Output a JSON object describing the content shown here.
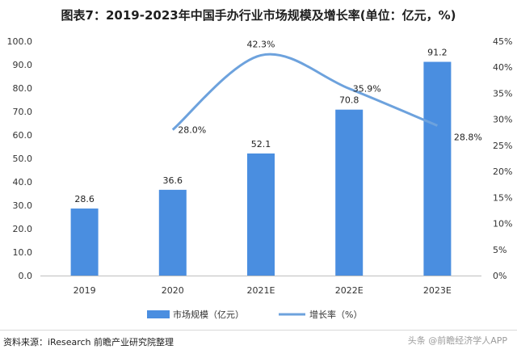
{
  "chart_data": {
    "type": "bar",
    "title": "图表7：2019-2023年中国手办行业市场规模及增长率(单位：亿元，%)",
    "categories": [
      "2019",
      "2020",
      "2021E",
      "2022E",
      "2023E"
    ],
    "series": [
      {
        "name": "市场规模（亿元）",
        "type": "bar",
        "axis": "left",
        "values": [
          28.6,
          36.6,
          52.1,
          70.8,
          91.2
        ],
        "labels": [
          "28.6",
          "36.6",
          "52.1",
          "70.8",
          "91.2"
        ]
      },
      {
        "name": "增长率（%）",
        "type": "line",
        "axis": "right",
        "values": [
          null,
          28.0,
          42.3,
          35.9,
          28.8
        ],
        "labels": [
          "",
          "28.0%",
          "42.3%",
          "35.9%",
          "28.8%"
        ]
      }
    ],
    "y_left": {
      "min": 0,
      "max": 100,
      "step": 10,
      "ticks": [
        "0.0",
        "10.0",
        "20.0",
        "30.0",
        "40.0",
        "50.0",
        "60.0",
        "70.0",
        "80.0",
        "90.0",
        "100.0"
      ]
    },
    "y_right": {
      "min": 0,
      "max": 45,
      "step": 5,
      "ticks": [
        "0%",
        "5%",
        "10%",
        "15%",
        "20%",
        "25%",
        "30%",
        "35%",
        "40%",
        "45%"
      ]
    },
    "legend_position": "bottom",
    "grid": false,
    "colors": {
      "bar": "#4a8ee0",
      "line": "#6da2dd"
    }
  },
  "footer": {
    "source": "资料来源：iResearch 前瞻产业研究院整理",
    "watermark": "头条 @前瞻经济学人APP"
  }
}
